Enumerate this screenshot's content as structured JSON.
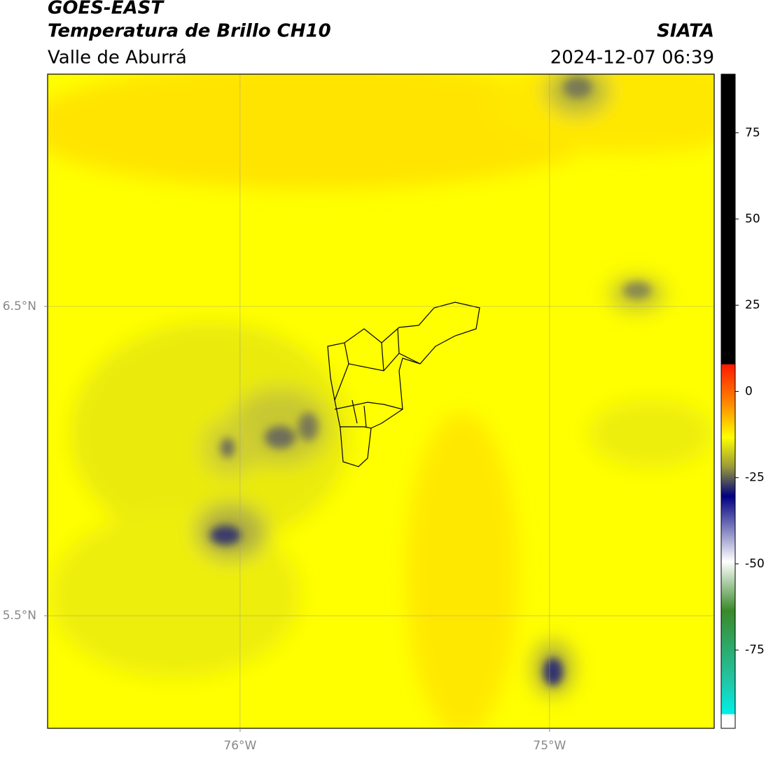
{
  "header": {
    "title": "GOES-EAST",
    "subtitle": "Temperatura de Brillo CH10",
    "region": "Valle de Aburrá",
    "source": "SIATA",
    "datetime": "2024-12-07 06:39"
  },
  "map": {
    "lonlim": [
      -76.622,
      -74.468
    ],
    "latlim": [
      5.136,
      7.251
    ],
    "lon_ticks": [
      {
        "value": -76,
        "label": "76°W"
      },
      {
        "value": -75,
        "label": "75°W"
      }
    ],
    "lat_ticks": [
      {
        "value": 6.5,
        "label": "6.5°N"
      },
      {
        "value": 5.5,
        "label": "5.5°N"
      }
    ],
    "grid": true
  },
  "colorbar": {
    "lim": [
      -97.7,
      92
    ],
    "ticks": [
      75,
      50,
      25,
      0,
      -25,
      -50,
      -75
    ]
  }
}
